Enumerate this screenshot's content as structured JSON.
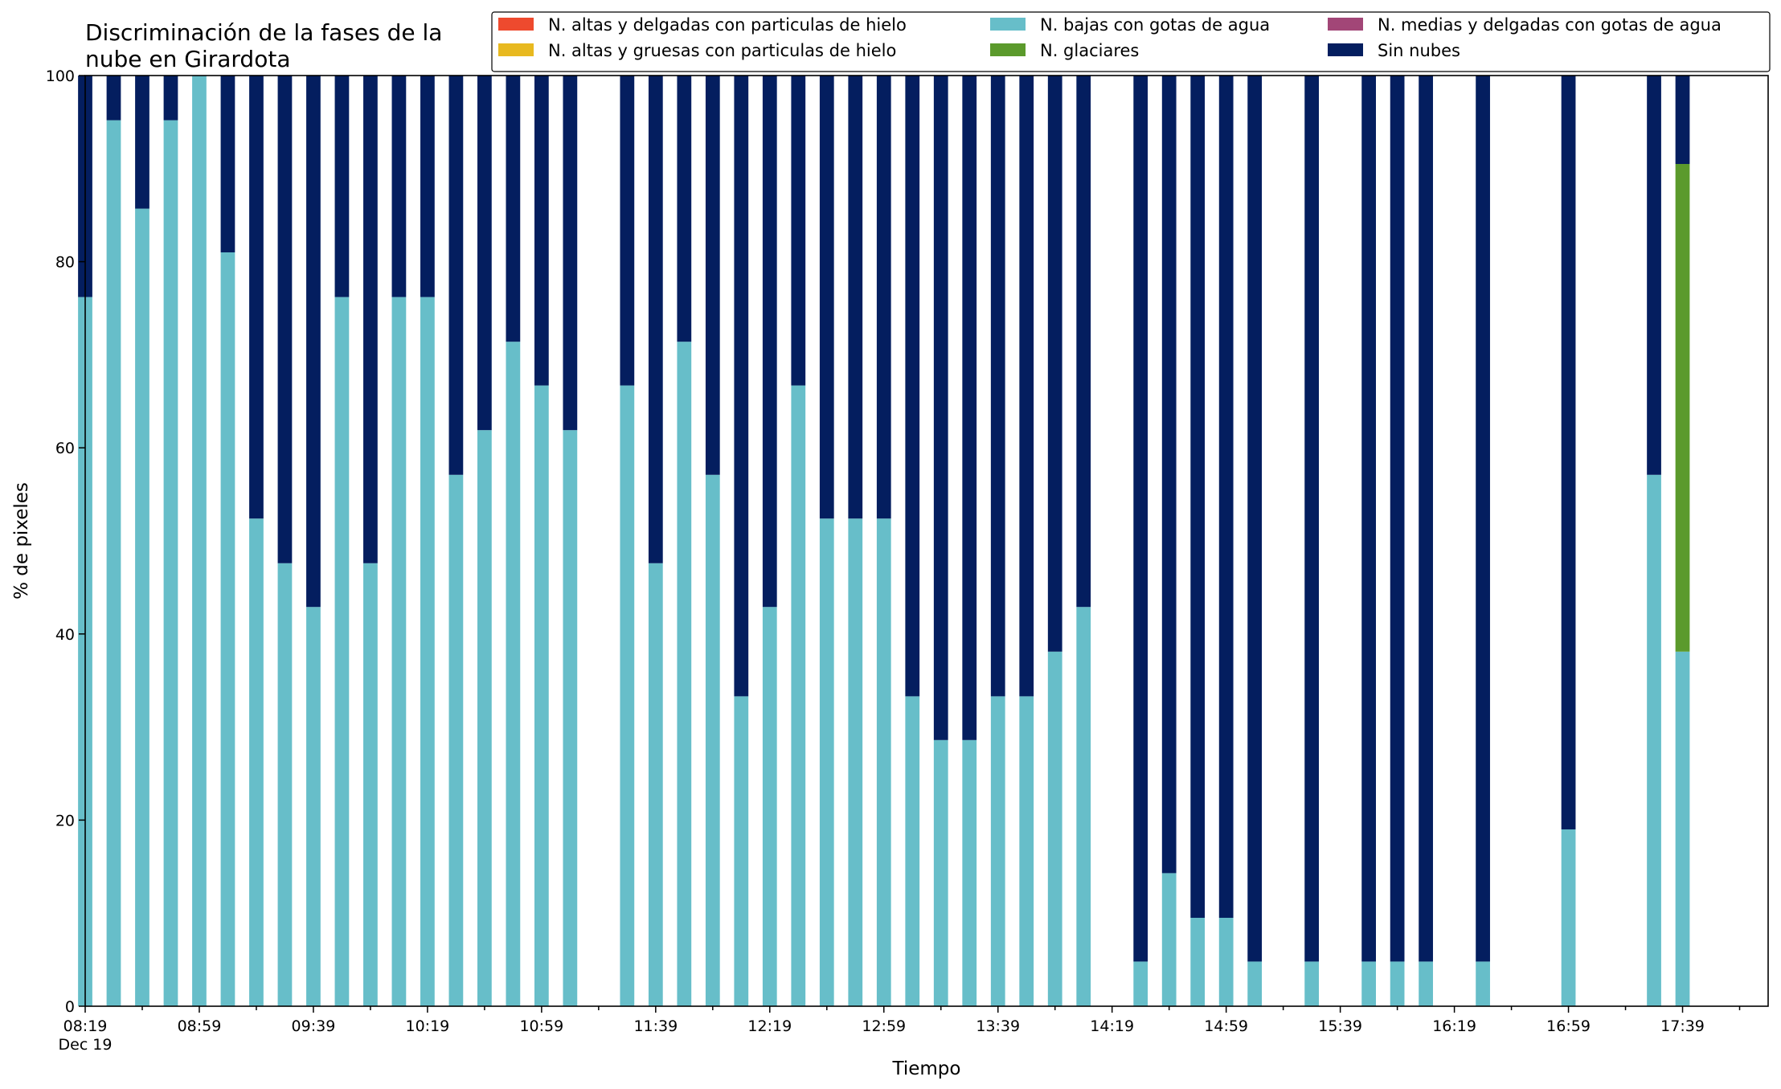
{
  "chart_data": {
    "type": "bar",
    "stacked": true,
    "title": [
      "Discriminación de la fases de la",
      "nube en Girardota"
    ],
    "xlabel": "Tiempo",
    "ylabel": "% de pixeles",
    "ylim": [
      0,
      100
    ],
    "yticks": [
      0,
      20,
      40,
      60,
      80,
      100
    ],
    "grid": false,
    "legend_position": "top-right",
    "x_start": "08:19",
    "x_end": "18:09",
    "x_step_minutes": 10,
    "xtick_labels": [
      "08:19",
      "08:59",
      "09:39",
      "10:19",
      "10:59",
      "11:39",
      "12:19",
      "12:59",
      "13:39",
      "14:19",
      "14:59",
      "15:39",
      "16:19",
      "16:59",
      "17:39"
    ],
    "xtick_date": "Dec 19",
    "series": [
      {
        "name": "N. altas y delgadas con particulas de hielo",
        "color": "#ee4a2e"
      },
      {
        "name": "N. altas y gruesas con particulas de hielo",
        "color": "#e8b91f"
      },
      {
        "name": "N. bajas con gotas de agua",
        "color": "#67bec9"
      },
      {
        "name": "N. glaciares",
        "color": "#5b9a2c"
      },
      {
        "name": "N. medias y delgadas con gotas de agua",
        "color": "#a24677"
      },
      {
        "name": "Sin nubes",
        "color": "#041e5f"
      }
    ],
    "bars": [
      {
        "time": "08:19",
        "bajas": 76.2,
        "glaciares": 0,
        "sin_nubes": 23.8
      },
      {
        "time": "08:29",
        "bajas": 95.2,
        "glaciares": 0,
        "sin_nubes": 4.8
      },
      {
        "time": "08:39",
        "bajas": 85.7,
        "glaciares": 0,
        "sin_nubes": 14.3
      },
      {
        "time": "08:49",
        "bajas": 95.2,
        "glaciares": 0,
        "sin_nubes": 4.8
      },
      {
        "time": "08:59",
        "bajas": 100.0,
        "glaciares": 0,
        "sin_nubes": 0.0
      },
      {
        "time": "09:09",
        "bajas": 81.0,
        "glaciares": 0,
        "sin_nubes": 19.0
      },
      {
        "time": "09:19",
        "bajas": 52.4,
        "glaciares": 0,
        "sin_nubes": 47.6
      },
      {
        "time": "09:29",
        "bajas": 47.6,
        "glaciares": 0,
        "sin_nubes": 52.4
      },
      {
        "time": "09:39",
        "bajas": 42.9,
        "glaciares": 0,
        "sin_nubes": 57.1
      },
      {
        "time": "09:49",
        "bajas": 76.2,
        "glaciares": 0,
        "sin_nubes": 23.8
      },
      {
        "time": "09:59",
        "bajas": 47.6,
        "glaciares": 0,
        "sin_nubes": 52.4
      },
      {
        "time": "10:09",
        "bajas": 76.2,
        "glaciares": 0,
        "sin_nubes": 23.8
      },
      {
        "time": "10:19",
        "bajas": 76.2,
        "glaciares": 0,
        "sin_nubes": 23.8
      },
      {
        "time": "10:29",
        "bajas": 57.1,
        "glaciares": 0,
        "sin_nubes": 42.9
      },
      {
        "time": "10:39",
        "bajas": 61.9,
        "glaciares": 0,
        "sin_nubes": 38.1
      },
      {
        "time": "10:49",
        "bajas": 71.4,
        "glaciares": 0,
        "sin_nubes": 28.6
      },
      {
        "time": "10:59",
        "bajas": 66.7,
        "glaciares": 0,
        "sin_nubes": 33.3
      },
      {
        "time": "11:09",
        "bajas": 61.9,
        "glaciares": 0,
        "sin_nubes": 38.1
      },
      {
        "time": "11:29",
        "bajas": 66.7,
        "glaciares": 0,
        "sin_nubes": 33.3
      },
      {
        "time": "11:39",
        "bajas": 47.6,
        "glaciares": 0,
        "sin_nubes": 52.4
      },
      {
        "time": "11:49",
        "bajas": 71.4,
        "glaciares": 0,
        "sin_nubes": 28.6
      },
      {
        "time": "11:59",
        "bajas": 57.1,
        "glaciares": 0,
        "sin_nubes": 42.9
      },
      {
        "time": "12:09",
        "bajas": 33.3,
        "glaciares": 0,
        "sin_nubes": 66.7
      },
      {
        "time": "12:19",
        "bajas": 42.9,
        "glaciares": 0,
        "sin_nubes": 57.1
      },
      {
        "time": "12:29",
        "bajas": 66.7,
        "glaciares": 0,
        "sin_nubes": 33.3
      },
      {
        "time": "12:39",
        "bajas": 52.4,
        "glaciares": 0,
        "sin_nubes": 47.6
      },
      {
        "time": "12:49",
        "bajas": 52.4,
        "glaciares": 0,
        "sin_nubes": 47.6
      },
      {
        "time": "12:59",
        "bajas": 52.4,
        "glaciares": 0,
        "sin_nubes": 47.6
      },
      {
        "time": "13:09",
        "bajas": 33.3,
        "glaciares": 0,
        "sin_nubes": 66.7
      },
      {
        "time": "13:19",
        "bajas": 28.6,
        "glaciares": 0,
        "sin_nubes": 71.4
      },
      {
        "time": "13:29",
        "bajas": 28.6,
        "glaciares": 0,
        "sin_nubes": 71.4
      },
      {
        "time": "13:39",
        "bajas": 33.3,
        "glaciares": 0,
        "sin_nubes": 66.7
      },
      {
        "time": "13:49",
        "bajas": 33.3,
        "glaciares": 0,
        "sin_nubes": 66.7
      },
      {
        "time": "13:59",
        "bajas": 38.1,
        "glaciares": 0,
        "sin_nubes": 61.9
      },
      {
        "time": "14:09",
        "bajas": 42.9,
        "glaciares": 0,
        "sin_nubes": 57.1
      },
      {
        "time": "14:29",
        "bajas": 4.8,
        "glaciares": 0,
        "sin_nubes": 95.2
      },
      {
        "time": "14:39",
        "bajas": 14.3,
        "glaciares": 0,
        "sin_nubes": 85.7
      },
      {
        "time": "14:49",
        "bajas": 9.5,
        "glaciares": 0,
        "sin_nubes": 90.5
      },
      {
        "time": "14:59",
        "bajas": 9.5,
        "glaciares": 0,
        "sin_nubes": 90.5
      },
      {
        "time": "15:09",
        "bajas": 4.8,
        "glaciares": 0,
        "sin_nubes": 95.2
      },
      {
        "time": "15:29",
        "bajas": 4.8,
        "glaciares": 0,
        "sin_nubes": 95.2
      },
      {
        "time": "15:49",
        "bajas": 4.8,
        "glaciares": 0,
        "sin_nubes": 95.2
      },
      {
        "time": "15:59",
        "bajas": 4.8,
        "glaciares": 0,
        "sin_nubes": 95.2
      },
      {
        "time": "16:09",
        "bajas": 4.8,
        "glaciares": 0,
        "sin_nubes": 95.2
      },
      {
        "time": "16:29",
        "bajas": 4.8,
        "glaciares": 0,
        "sin_nubes": 95.2
      },
      {
        "time": "16:59",
        "bajas": 19.0,
        "glaciares": 0,
        "sin_nubes": 81.0
      },
      {
        "time": "17:29",
        "bajas": 57.1,
        "glaciares": 0,
        "sin_nubes": 42.9
      },
      {
        "time": "17:39",
        "bajas": 38.1,
        "glaciares": 52.4,
        "sin_nubes": 9.5
      }
    ]
  }
}
